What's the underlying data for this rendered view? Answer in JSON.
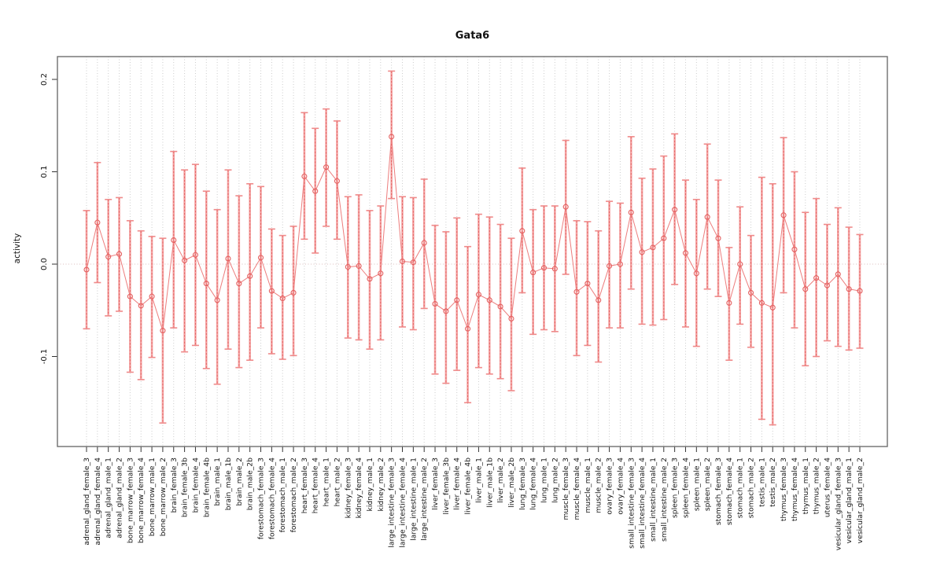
{
  "title": "Gata6",
  "ylabel": "activity",
  "colors": {
    "point": "#e45f5f",
    "line": "#ed7d7d",
    "bar_pale": "#f4a5a5",
    "bar_dash": "#e4605f",
    "cap": "#ef8a8a",
    "grid": "#cbcbcb",
    "zero_line": "#dcbcbc",
    "box": "#6e6e6e",
    "tick": "#333333",
    "text": "#111111"
  },
  "chart_data": {
    "type": "scatter",
    "style": "points with error bars, connected by line (R plotCI style)",
    "title": "Gata6",
    "xlabel": "",
    "ylabel": "activity",
    "ylim": [
      -0.197,
      0.225
    ],
    "yticks": [
      {
        "v": 0.2,
        "label": "0.2"
      },
      {
        "v": 0.1,
        "label": "0.1"
      },
      {
        "v": 0.0,
        "label": "0.0"
      },
      {
        "v": -0.1,
        "label": "-0.1"
      }
    ],
    "grid": "vertical dotted gridline at every category; dotted horizontal line at y=0",
    "legend": "none",
    "categories": [
      "adrenal_gland_female_3",
      "adrenal_gland_female_4",
      "adrenal_gland_male_1",
      "adrenal_gland_male_2",
      "bone_marrow_female_3",
      "bone_marrow_female_4",
      "bone_marrow_male_1",
      "bone_marrow_male_2",
      "brain_female_3",
      "brain_female_3b",
      "brain_female_4",
      "brain_female_4b",
      "brain_male_1",
      "brain_male_1b",
      "brain_male_2",
      "brain_male_2b",
      "forestomach_female_3",
      "forestomach_female_4",
      "forestomach_male_1",
      "forestomach_male_2",
      "heart_female_3",
      "heart_female_4",
      "heart_male_1",
      "heart_male_2",
      "kidney_female_3",
      "kidney_female_4",
      "kidney_male_1",
      "kidney_male_2",
      "large_intestine_female_3",
      "large_intestine_female_4",
      "large_intestine_male_1",
      "large_intestine_male_2",
      "liver_female_3",
      "liver_female_3b",
      "liver_female_4",
      "liver_female_4b",
      "liver_male_1",
      "liver_male_1b",
      "liver_male_2",
      "liver_male_2b",
      "lung_female_3",
      "lung_female_4",
      "lung_male_1",
      "lung_male_2",
      "muscle_female_3",
      "muscle_female_4",
      "muscle_male_1",
      "muscle_male_2",
      "ovary_female_3",
      "ovary_female_4",
      "small_intestine_female_3",
      "small_intestine_female_4",
      "small_intestine_male_1",
      "small_intestine_male_2",
      "spleen_female_3",
      "spleen_female_4",
      "spleen_male_1",
      "spleen_male_2",
      "stomach_female_3",
      "stomach_female_4",
      "stomach_male_1",
      "stomach_male_2",
      "testis_male_1",
      "testis_male_2",
      "thymus_female_3",
      "thymus_female_4",
      "thymus_male_1",
      "thymus_male_2",
      "uterus_female_4",
      "vesicular_gland_female_3",
      "vesicular_gland_male_1",
      "vesicular_gland_male_2"
    ],
    "values": [
      -0.006,
      0.045,
      0.008,
      0.011,
      -0.035,
      -0.045,
      -0.035,
      -0.072,
      0.026,
      0.004,
      0.01,
      -0.021,
      -0.039,
      0.006,
      -0.021,
      -0.013,
      0.007,
      -0.029,
      -0.037,
      -0.031,
      0.095,
      0.079,
      0.105,
      0.09,
      -0.003,
      -0.002,
      -0.016,
      -0.01,
      0.138,
      0.003,
      0.002,
      0.023,
      -0.043,
      -0.051,
      -0.039,
      -0.07,
      -0.033,
      -0.039,
      -0.046,
      -0.059,
      0.036,
      -0.009,
      -0.004,
      -0.005,
      0.062,
      -0.03,
      -0.021,
      -0.039,
      -0.002,
      0.0,
      0.056,
      0.013,
      0.018,
      0.028,
      0.059,
      0.012,
      -0.01,
      0.051,
      0.028,
      -0.042,
      0.0,
      -0.031,
      -0.042,
      -0.047,
      0.053,
      0.016,
      -0.027,
      -0.015,
      -0.023,
      -0.011,
      -0.027,
      -0.029
    ],
    "lower": [
      -0.07,
      -0.02,
      -0.056,
      -0.051,
      -0.117,
      -0.125,
      -0.101,
      -0.172,
      -0.069,
      -0.095,
      -0.088,
      -0.113,
      -0.13,
      -0.092,
      -0.112,
      -0.104,
      -0.069,
      -0.097,
      -0.103,
      -0.099,
      0.027,
      0.012,
      0.041,
      0.027,
      -0.08,
      -0.082,
      -0.092,
      -0.082,
      0.071,
      -0.068,
      -0.071,
      -0.048,
      -0.119,
      -0.129,
      -0.115,
      -0.15,
      -0.112,
      -0.119,
      -0.124,
      -0.137,
      -0.031,
      -0.076,
      -0.071,
      -0.073,
      -0.011,
      -0.099,
      -0.088,
      -0.106,
      -0.069,
      -0.069,
      -0.027,
      -0.065,
      -0.066,
      -0.06,
      -0.022,
      -0.068,
      -0.089,
      -0.027,
      -0.035,
      -0.104,
      -0.065,
      -0.09,
      -0.168,
      -0.174,
      -0.031,
      -0.069,
      -0.11,
      -0.1,
      -0.083,
      -0.089,
      -0.093,
      -0.091
    ],
    "upper": [
      0.058,
      0.11,
      0.07,
      0.072,
      0.047,
      0.036,
      0.03,
      0.028,
      0.122,
      0.102,
      0.108,
      0.079,
      0.059,
      0.102,
      0.074,
      0.087,
      0.084,
      0.038,
      0.031,
      0.041,
      0.164,
      0.147,
      0.168,
      0.155,
      0.073,
      0.075,
      0.058,
      0.063,
      0.209,
      0.073,
      0.072,
      0.092,
      0.042,
      0.035,
      0.05,
      0.019,
      0.054,
      0.051,
      0.043,
      0.028,
      0.104,
      0.059,
      0.063,
      0.063,
      0.134,
      0.047,
      0.046,
      0.036,
      0.068,
      0.066,
      0.138,
      0.093,
      0.103,
      0.117,
      0.141,
      0.091,
      0.07,
      0.13,
      0.091,
      0.018,
      0.062,
      0.031,
      0.094,
      0.087,
      0.137,
      0.1,
      0.056,
      0.071,
      0.043,
      0.061,
      0.04,
      0.032
    ]
  }
}
